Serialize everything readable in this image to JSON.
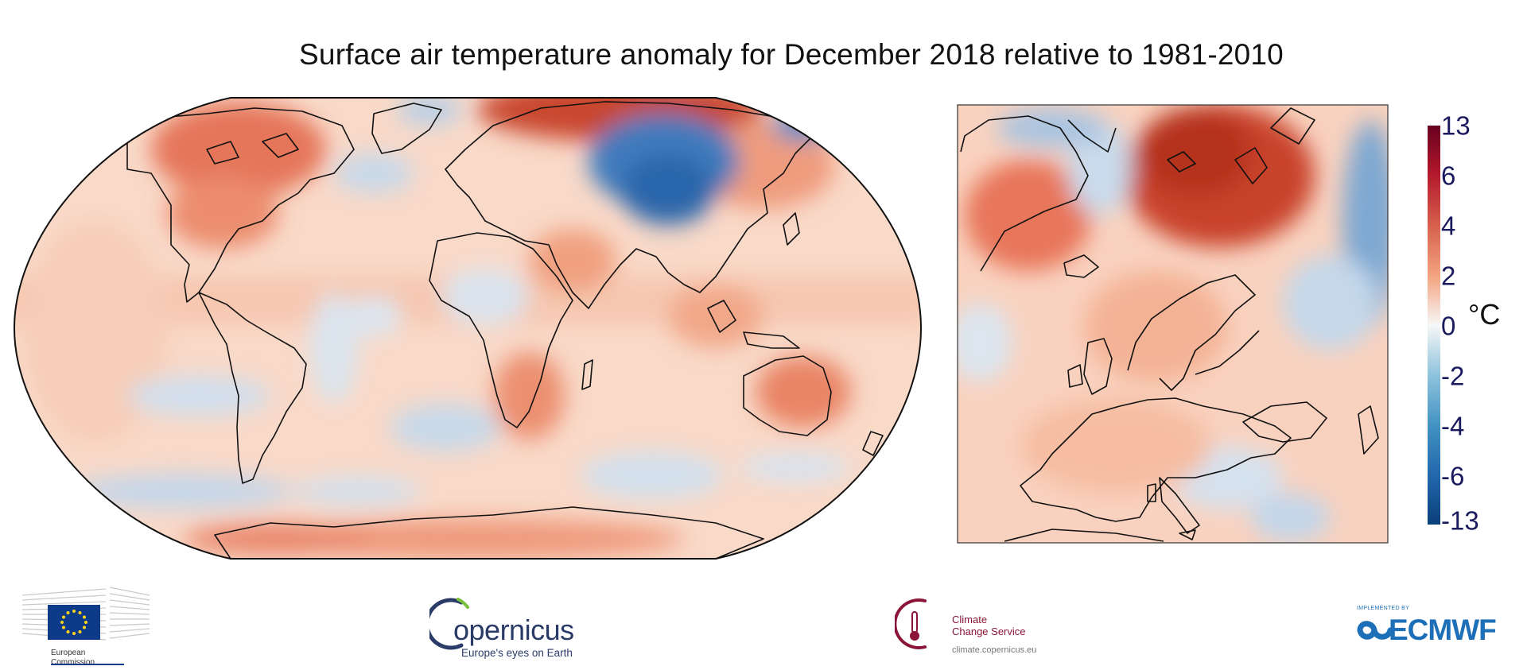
{
  "title": "Surface air temperature anomaly for December 2018 relative to 1981-2010",
  "colorbar": {
    "ticks": [
      "13",
      "6",
      "4",
      "2",
      "0",
      "-2",
      "-4",
      "-6",
      "-13"
    ],
    "unit": "°C",
    "colors": [
      "#0a3f7a",
      "#2166ac",
      "#4393c3",
      "#92c5de",
      "#f7f7f7",
      "#f4a582",
      "#d6604d",
      "#b2182b",
      "#67001f"
    ]
  },
  "maps": {
    "global": {
      "projection": "robinson",
      "region": "world"
    },
    "inset": {
      "region": "europe-arctic"
    }
  },
  "logos": {
    "ec": {
      "line1": "European",
      "line2": "Commission"
    },
    "copernicus": {
      "wordmark": "opernicus",
      "tagline": "Europe's eyes on Earth"
    },
    "c3s": {
      "line1": "Climate",
      "line2": "Change Service",
      "url": "climate.copernicus.eu"
    },
    "ecmwf": {
      "implemented_by": "IMPLEMENTED BY",
      "wordmark": "ECMWF"
    }
  }
}
